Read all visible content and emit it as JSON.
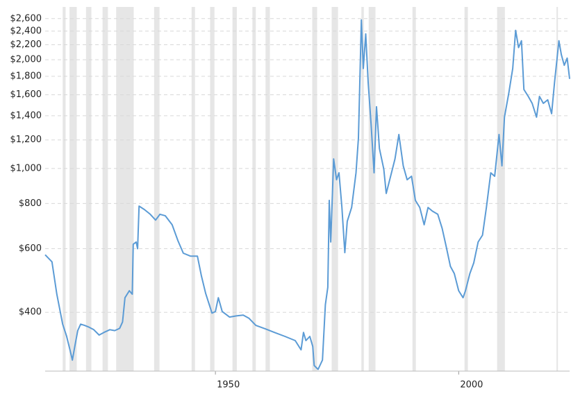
{
  "chart_data": {
    "type": "line",
    "x": [
      1915,
      1916.4,
      1917.4,
      1918.6,
      1919.4,
      1920.1,
      1920.6,
      1921.1,
      1921.7,
      1922.3,
      1923.1,
      1924,
      1925,
      1926.1,
      1927.1,
      1928.3,
      1929.3,
      1930.3,
      1930.9,
      1931.4,
      1932.3,
      1932.9,
      1933.1,
      1933.7,
      1934,
      1934.3,
      1935.4,
      1936.6,
      1937.7,
      1938.6,
      1939.7,
      1941.1,
      1942.3,
      1943.4,
      1944.9,
      1946.3,
      1947.1,
      1948,
      1949.3,
      1950,
      1950.6,
      1951.4,
      1952.9,
      1954.3,
      1955.7,
      1956.9,
      1958.3,
      1960,
      1962.1,
      1964.3,
      1966.4,
      1967.6,
      1968.1,
      1968.6,
      1969.4,
      1970,
      1970.3,
      1971.1,
      1972,
      1972.6,
      1973.1,
      1973.4,
      1973.7,
      1974.3,
      1974.9,
      1975.4,
      1976,
      1976.6,
      1977.1,
      1978,
      1978.9,
      1979.4,
      1980,
      1980.4,
      1980.9,
      1981.4,
      1982,
      1982.6,
      1983.1,
      1983.7,
      1984.6,
      1985.1,
      1986,
      1986.9,
      1987.7,
      1988.6,
      1989.4,
      1990.3,
      1991.1,
      1992,
      1992.9,
      1993.7,
      1994.6,
      1995.7,
      1996.6,
      1997.4,
      1998.3,
      1999.1,
      2000,
      2000.9,
      2001.4,
      2002.3,
      2003.1,
      2004,
      2004.9,
      2005.7,
      2006.6,
      2007.4,
      2008.3,
      2008.9,
      2009.4,
      2010.3,
      2011.1,
      2011.7,
      2012.3,
      2012.9,
      2013.4,
      2014.3,
      2015.1,
      2016,
      2016.6,
      2017.4,
      2018.3,
      2019.1,
      2019.7,
      2020.6,
      2021.1,
      2021.7,
      2022.3,
      2022.8
    ],
    "series": [
      {
        "color": "#5b9bd5",
        "values": [
          577,
          552,
          449,
          371,
          344,
          315,
          295,
          322,
          356,
          371,
          368,
          364,
          358,
          346,
          352,
          358,
          356,
          361,
          376,
          439,
          459,
          449,
          617,
          626,
          600,
          787,
          770,
          747,
          720,
          747,
          740,
          699,
          631,
          583,
          572,
          572,
          506,
          451,
          398,
          402,
          439,
          402,
          388,
          391,
          393,
          385,
          368,
          361,
          352,
          343,
          334,
          315,
          352,
          334,
          343,
          322,
          285,
          278,
          295,
          420,
          469,
          816,
          626,
          1063,
          931,
          973,
          780,
          585,
          714,
          780,
          973,
          1215,
          2577,
          1891,
          2358,
          1731,
          1327,
          973,
          1482,
          1136,
          996,
          853,
          952,
          1063,
          1242,
          1017,
          931,
          952,
          816,
          780,
          699,
          780,
          762,
          747,
          683,
          611,
          536,
          512,
          459,
          439,
          459,
          512,
          548,
          626,
          654,
          780,
          973,
          952,
          1242,
          1017,
          1387,
          1619,
          1891,
          2411,
          2161,
          2257,
          1655,
          1583,
          1515,
          1387,
          1583,
          1515,
          1549,
          1418,
          1731,
          2257,
          2066,
          1931,
          2021,
          1770
        ]
      }
    ],
    "xlim": [
      1915,
      2022.8
    ],
    "xticks": [
      1950,
      2000
    ],
    "ylim": [
      275,
      2800
    ],
    "yticks": [
      {
        "value": 400,
        "label": "$400"
      },
      {
        "value": 600,
        "label": "$600"
      },
      {
        "value": 800,
        "label": "$800"
      },
      {
        "value": 1000,
        "label": "$1,000"
      },
      {
        "value": 1200,
        "label": "$1,200"
      },
      {
        "value": 1400,
        "label": "$1,400"
      },
      {
        "value": 1600,
        "label": "$1,600"
      },
      {
        "value": 1800,
        "label": "$1,800"
      },
      {
        "value": 2000,
        "label": "$2,000"
      },
      {
        "value": 2200,
        "label": "$2,200"
      },
      {
        "value": 2400,
        "label": "$2,400"
      },
      {
        "value": 2600,
        "label": "$2,600"
      }
    ],
    "log_y": true,
    "grid": true,
    "shade_color": "#e6e6e6",
    "shaded_periods": [
      [
        1918.6,
        1919.2
      ],
      [
        1920.0,
        1921.5
      ],
      [
        1923.4,
        1924.5
      ],
      [
        1926.8,
        1927.9
      ],
      [
        1929.6,
        1933.2
      ],
      [
        1937.4,
        1938.5
      ],
      [
        1945.1,
        1945.8
      ],
      [
        1948.9,
        1949.8
      ],
      [
        1953.5,
        1954.4
      ],
      [
        1957.6,
        1958.3
      ],
      [
        1960.3,
        1961.2
      ],
      [
        1969.9,
        1970.9
      ],
      [
        1973.9,
        1975.2
      ],
      [
        1980.0,
        1980.5
      ],
      [
        1981.5,
        1982.9
      ],
      [
        1990.5,
        1991.2
      ],
      [
        2001.2,
        2001.9
      ],
      [
        2007.9,
        2009.5
      ],
      [
        2020.1,
        2020.4
      ]
    ]
  }
}
